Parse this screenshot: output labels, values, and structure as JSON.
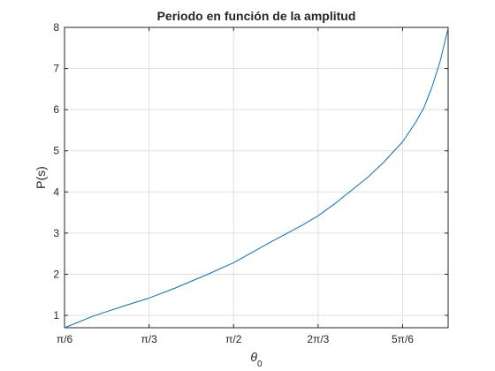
{
  "chart_data": {
    "type": "line",
    "title": "Periodo en función de la amplitud",
    "xlabel": "θ",
    "xlabel_subscript": "0",
    "ylabel": "P(s)",
    "xlim": [
      0.5236,
      2.9
    ],
    "ylim": [
      0.7,
      8
    ],
    "grid": true,
    "x_ticks": [
      {
        "value": 0.5236,
        "label": "π/6"
      },
      {
        "value": 1.0472,
        "label": "π/3"
      },
      {
        "value": 1.5708,
        "label": "π/2"
      },
      {
        "value": 2.0944,
        "label": "2π/3"
      },
      {
        "value": 2.618,
        "label": "5π/6"
      }
    ],
    "y_ticks": [
      1,
      2,
      3,
      4,
      5,
      6,
      7,
      8
    ],
    "series": [
      {
        "color": "#0072bd",
        "x": [
          0.5236,
          0.7,
          0.9,
          1.0472,
          1.2,
          1.4,
          1.5708,
          1.8,
          2.0,
          2.0944,
          2.2,
          2.4,
          2.5,
          2.618,
          2.7,
          2.75,
          2.8,
          2.85,
          2.9
        ],
        "y": [
          0.7,
          0.98,
          1.24,
          1.42,
          1.65,
          1.98,
          2.28,
          2.78,
          3.2,
          3.42,
          3.72,
          4.35,
          4.72,
          5.22,
          5.7,
          6.05,
          6.55,
          7.17,
          7.98
        ]
      }
    ]
  }
}
